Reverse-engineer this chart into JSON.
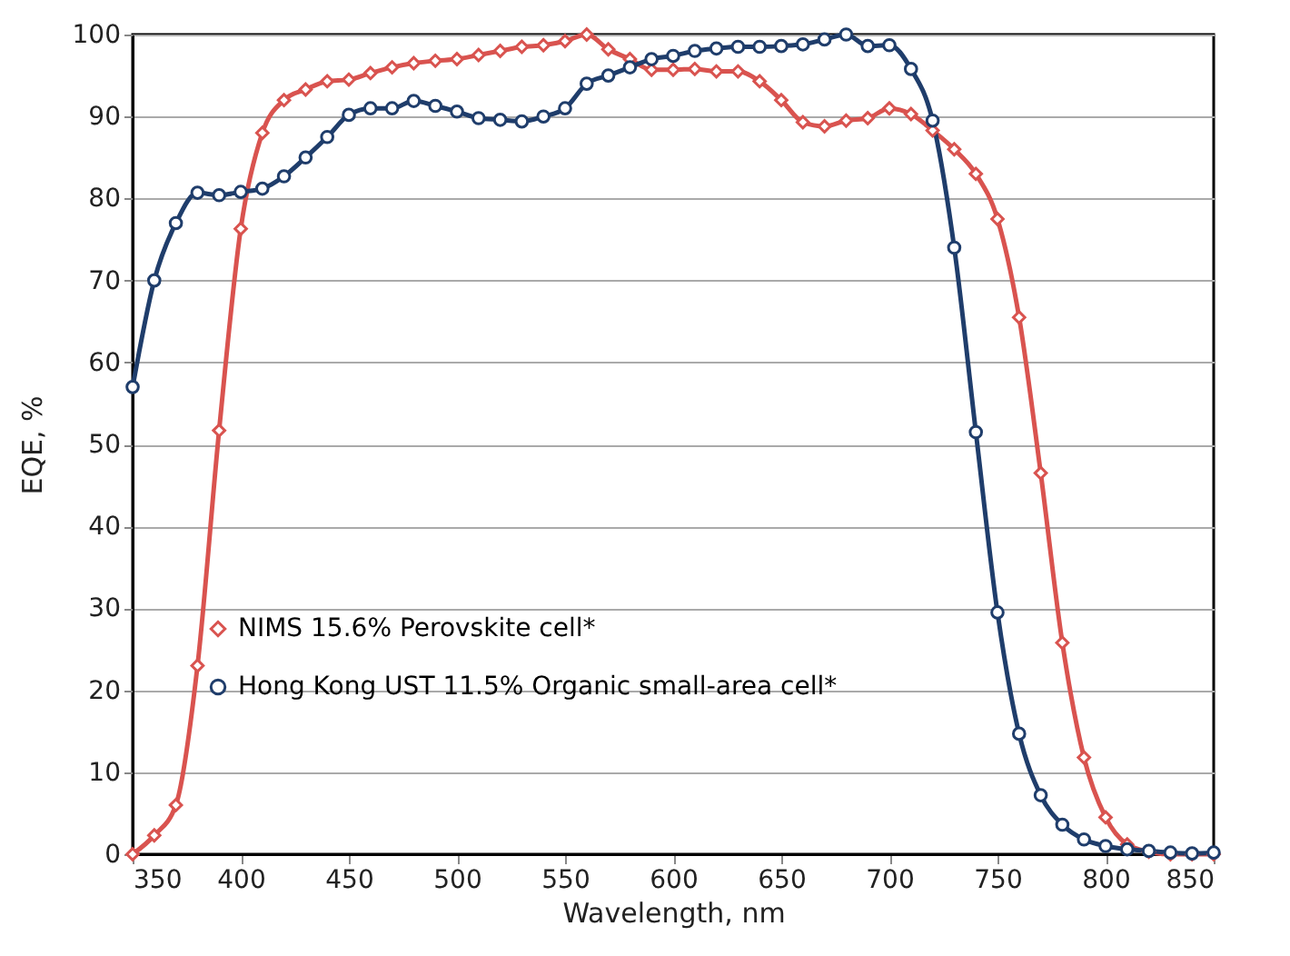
{
  "chart_data": {
    "type": "line",
    "xlabel": "Wavelength, nm",
    "ylabel": "EQE, %",
    "x": [
      350,
      360,
      370,
      380,
      390,
      400,
      410,
      420,
      430,
      440,
      450,
      460,
      470,
      480,
      490,
      500,
      510,
      520,
      530,
      540,
      550,
      560,
      570,
      580,
      590,
      600,
      610,
      620,
      630,
      640,
      650,
      660,
      670,
      680,
      690,
      700,
      710,
      720,
      730,
      740,
      750,
      760,
      770,
      780,
      790,
      800,
      810,
      820,
      830,
      840,
      850
    ],
    "series": [
      {
        "name": "NIMS 15.6% Perovskite cell*",
        "color": "#d9534f",
        "marker": "diamond",
        "values": [
          0,
          2.3,
          6,
          23,
          51.7,
          76.3,
          88,
          92,
          93.3,
          94.3,
          94.5,
          95.3,
          96,
          96.5,
          96.8,
          97,
          97.5,
          98,
          98.5,
          98.7,
          99.2,
          100,
          98.2,
          97,
          95.7,
          95.7,
          95.8,
          95.5,
          95.5,
          94.3,
          92,
          89.3,
          88.8,
          89.5,
          89.8,
          91,
          90.3,
          88.3,
          86,
          83,
          77.5,
          65.5,
          46.5,
          25.8,
          11.8,
          4.5,
          1.2,
          0.3,
          0,
          0,
          0
        ]
      },
      {
        "name": "Hong Kong UST 11.5% Organic small-area cell*",
        "color": "#1f3d6b",
        "marker": "circle",
        "values": [
          57,
          70,
          77,
          80.7,
          80.4,
          80.8,
          81.2,
          82.7,
          85,
          87.5,
          90.2,
          91,
          91,
          91.9,
          91.3,
          90.6,
          89.8,
          89.6,
          89.4,
          90,
          91,
          94,
          95,
          96,
          97,
          97.4,
          98,
          98.3,
          98.5,
          98.5,
          98.6,
          98.8,
          99.4,
          100,
          98.6,
          98.7,
          95.8,
          89.5,
          74,
          51.5,
          29.5,
          14.7,
          7.2,
          3.6,
          1.8,
          1,
          0.6,
          0.4,
          0.2,
          0.1,
          0.2
        ]
      }
    ],
    "xlim": [
      350,
      850
    ],
    "xticks": [
      350,
      400,
      450,
      500,
      550,
      600,
      650,
      700,
      750,
      800,
      850
    ],
    "ylim": [
      0,
      100
    ],
    "yticks": [
      0,
      10,
      20,
      30,
      40,
      50,
      60,
      70,
      80,
      90,
      100
    ],
    "grid": "y",
    "legend": "bottom left",
    "line_style": "solid"
  }
}
